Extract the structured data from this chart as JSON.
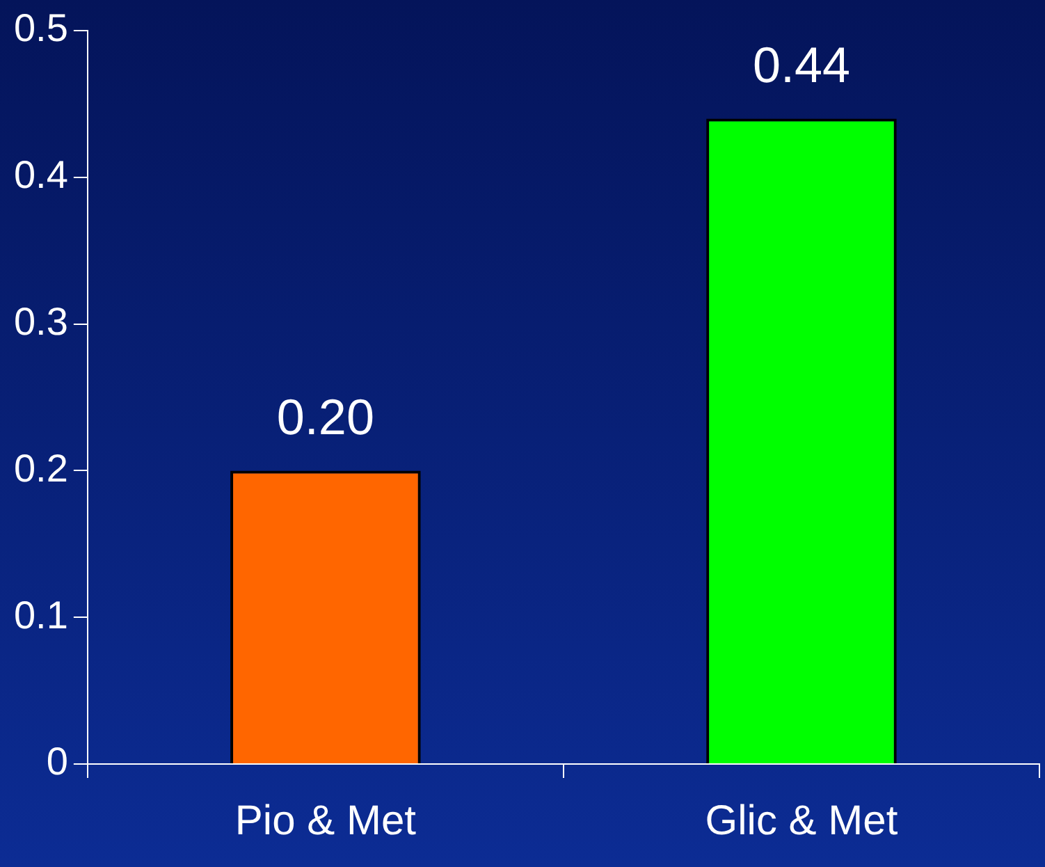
{
  "chart_data": {
    "type": "bar",
    "categories": [
      "Pio & Met",
      "Glic & Met"
    ],
    "values": [
      0.2,
      0.44
    ],
    "colors": [
      "#ff6600",
      "#00ff00"
    ],
    "value_labels": [
      "0.20",
      "0.44"
    ],
    "ylim": [
      0,
      0.5
    ],
    "yticks": [
      0,
      0.1,
      0.2,
      0.3,
      0.4,
      0.5
    ],
    "grid": false,
    "legend": false
  }
}
